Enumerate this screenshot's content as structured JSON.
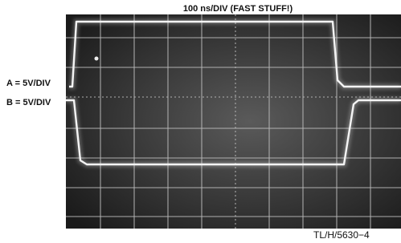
{
  "title": "100 ns/DIV (FAST STUFF!)",
  "channels": [
    "A = 5V/DIV",
    "B = 5V/DIV"
  ],
  "figure_id": "TL/H/5630−4"
}
